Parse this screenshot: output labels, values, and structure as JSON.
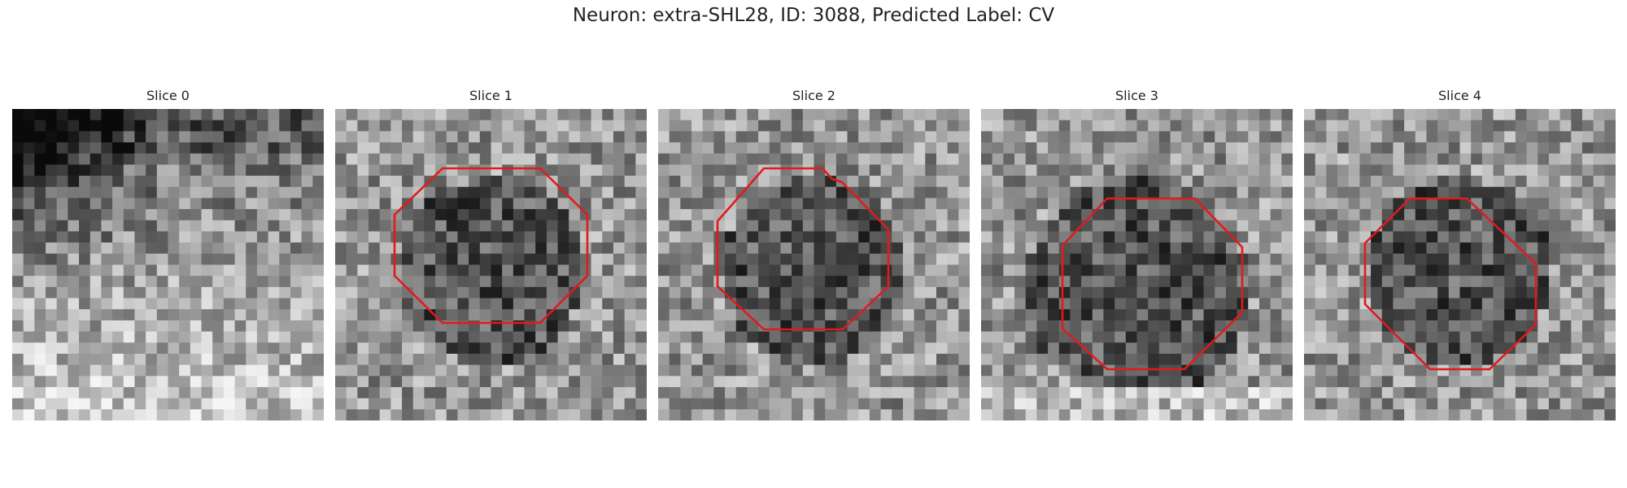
{
  "figure": {
    "title": "Neuron: extra-SHL28, ID: 3088, Predicted Label: CV",
    "outline_color": "#e01b1b"
  },
  "slices": [
    {
      "label": "Slice 0",
      "has_outline": false,
      "style": "bright-bottom-dark-topleft"
    },
    {
      "label": "Slice 1",
      "has_outline": true,
      "style": "dark-center"
    },
    {
      "label": "Slice 2",
      "has_outline": true,
      "style": "dark-center"
    },
    {
      "label": "Slice 3",
      "has_outline": true,
      "style": "dark-large-center"
    },
    {
      "label": "Slice 4",
      "has_outline": true,
      "style": "dark-center"
    }
  ]
}
